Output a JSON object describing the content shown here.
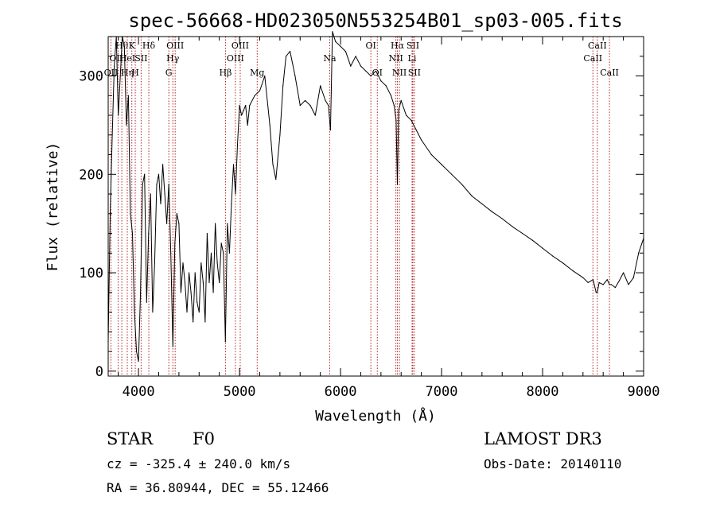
{
  "chart_data": {
    "type": "line",
    "title": "spec-56668-HD023050N553254B01_sp03-005.fits",
    "xlabel": "Wavelength (Å)",
    "ylabel": "Flux (relative)",
    "xlim": [
      3700,
      9000
    ],
    "ylim": [
      -5,
      340
    ],
    "xticks": [
      4000,
      5000,
      6000,
      7000,
      8000,
      9000
    ],
    "yticks": [
      0,
      100,
      200,
      300
    ],
    "grid": false,
    "line_color": "#000000",
    "marker_color": "#b22222",
    "series": [
      {
        "x": [
          3700,
          3720,
          3740,
          3760,
          3780,
          3800,
          3820,
          3840,
          3860,
          3880,
          3900,
          3920,
          3940,
          3960,
          3980,
          4000,
          4020,
          4040,
          4060,
          4080,
          4100,
          4120,
          4140,
          4160,
          4180,
          4200,
          4220,
          4240,
          4260,
          4280,
          4300,
          4320,
          4340,
          4360,
          4380,
          4400,
          4420,
          4440,
          4460,
          4480,
          4500,
          4520,
          4540,
          4560,
          4580,
          4600,
          4620,
          4640,
          4660,
          4680,
          4700,
          4720,
          4740,
          4760,
          4780,
          4800,
          4820,
          4840,
          4860,
          4880,
          4900,
          4920,
          4940,
          4960,
          4980,
          5000,
          5020,
          5040,
          5060,
          5080,
          5100,
          5150,
          5200,
          5250,
          5300,
          5330,
          5360,
          5400,
          5430,
          5460,
          5500,
          5550,
          5600,
          5650,
          5700,
          5750,
          5800,
          5850,
          5880,
          5900,
          5920,
          5950,
          6000,
          6050,
          6100,
          6150,
          6200,
          6250,
          6300,
          6350,
          6400,
          6450,
          6500,
          6530,
          6550,
          6563,
          6575,
          6600,
          6650,
          6700,
          6750,
          6800,
          6900,
          7000,
          7100,
          7200,
          7300,
          7400,
          7500,
          7600,
          7700,
          7800,
          7900,
          8000,
          8100,
          8200,
          8300,
          8400,
          8450,
          8500,
          8530,
          8542,
          8560,
          8600,
          8640,
          8662,
          8680,
          8720,
          8760,
          8800,
          8850,
          8900,
          8950,
          9000
        ],
        "y": [
          30,
          160,
          240,
          310,
          340,
          260,
          300,
          340,
          330,
          250,
          280,
          160,
          140,
          60,
          20,
          10,
          80,
          190,
          200,
          70,
          140,
          180,
          60,
          110,
          190,
          200,
          170,
          210,
          180,
          150,
          190,
          120,
          25,
          130,
          160,
          150,
          80,
          110,
          90,
          60,
          100,
          80,
          50,
          100,
          70,
          60,
          110,
          90,
          50,
          140,
          90,
          120,
          80,
          150,
          110,
          90,
          130,
          120,
          30,
          150,
          120,
          170,
          210,
          180,
          230,
          270,
          260,
          265,
          270,
          250,
          270,
          280,
          285,
          300,
          250,
          210,
          195,
          240,
          290,
          320,
          325,
          300,
          270,
          275,
          270,
          260,
          290,
          275,
          270,
          245,
          345,
          335,
          330,
          325,
          310,
          320,
          310,
          305,
          300,
          305,
          295,
          290,
          280,
          270,
          255,
          190,
          265,
          275,
          260,
          255,
          245,
          235,
          220,
          210,
          200,
          190,
          178,
          170,
          162,
          155,
          147,
          140,
          133,
          125,
          117,
          110,
          102,
          95,
          90,
          93,
          80,
          80,
          90,
          88,
          93,
          88,
          88,
          85,
          92,
          100,
          88,
          95,
          120,
          135
        ]
      }
    ],
    "line_markers": [
      {
        "wl": 3727,
        "top": "OII",
        "row": 3
      },
      {
        "wl": 3798,
        "top": "OIII",
        "row": 2
      },
      {
        "wl": 3835,
        "top": "Hθ",
        "row": 1
      },
      {
        "wl": 3889,
        "top": "Hη",
        "row": 3
      },
      {
        "wl": 3889,
        "top": "HeI",
        "row": 2
      },
      {
        "wl": 3934,
        "top": "K",
        "row": 1
      },
      {
        "wl": 3968,
        "top": "H",
        "row": 3
      },
      {
        "wl": 4026,
        "top": "SII",
        "row": 2
      },
      {
        "wl": 4102,
        "top": "Hδ",
        "row": 1
      },
      {
        "wl": 4300,
        "top": "G",
        "row": 3
      },
      {
        "wl": 4340,
        "top": "Hγ",
        "row": 2
      },
      {
        "wl": 4363,
        "top": "OIII",
        "row": 1
      },
      {
        "wl": 4861,
        "top": "Hβ",
        "row": 3
      },
      {
        "wl": 4959,
        "top": "OIII",
        "row": 2
      },
      {
        "wl": 5007,
        "top": "OIII",
        "row": 1
      },
      {
        "wl": 5175,
        "top": "Mg",
        "row": 3
      },
      {
        "wl": 5893,
        "top": "Na",
        "row": 2
      },
      {
        "wl": 6300,
        "top": "OI",
        "row": 1
      },
      {
        "wl": 6364,
        "top": "OI",
        "row": 3
      },
      {
        "wl": 6548,
        "top": "NII",
        "row": 2
      },
      {
        "wl": 6563,
        "top": "Hα",
        "row": 1
      },
      {
        "wl": 6583,
        "top": "NII",
        "row": 3
      },
      {
        "wl": 6708,
        "top": "Li",
        "row": 2
      },
      {
        "wl": 6716,
        "top": "SII",
        "row": 1
      },
      {
        "wl": 6731,
        "top": "SII",
        "row": 3
      },
      {
        "wl": 8498,
        "top": "CaII",
        "row": 2
      },
      {
        "wl": 8542,
        "top": "CaII",
        "row": 1
      },
      {
        "wl": 8662,
        "top": "CaII",
        "row": 3
      }
    ]
  },
  "info": {
    "object_class": "STAR",
    "subclass": "F0",
    "redshift": "cz = -325.4 ± 240.0 km/s",
    "coords": "RA =  36.80944, DEC =  55.12466",
    "survey": "LAMOST DR3",
    "obs_date": "Obs-Date: 20140110"
  }
}
